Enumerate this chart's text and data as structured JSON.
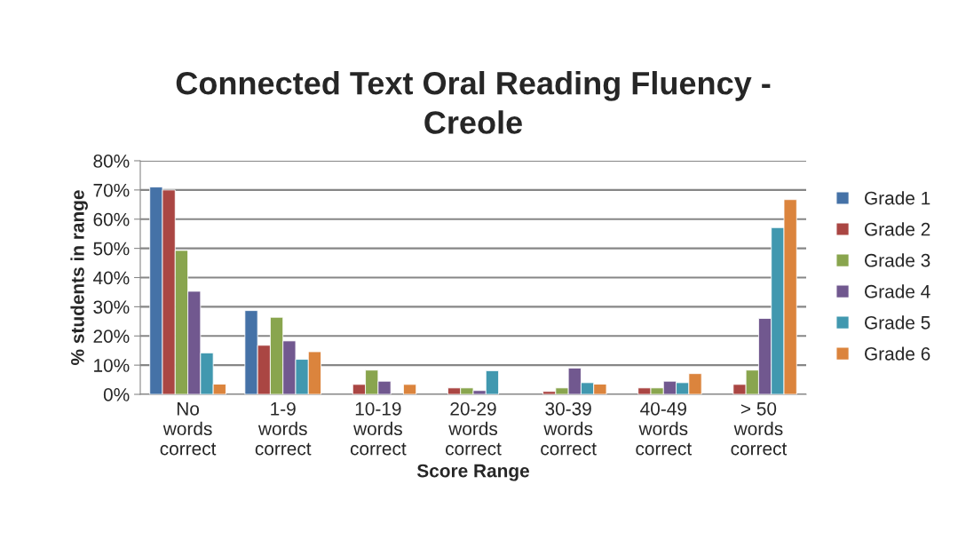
{
  "chart_data": {
    "type": "bar",
    "title": "Connected Text Oral Reading Fluency -\nCreole",
    "xlabel": "Score Range",
    "ylabel": "% students in range",
    "categories": [
      "No\nwords\ncorrect",
      "1-9\nwords\ncorrect",
      "10-19\nwords\ncorrect",
      "20-29\nwords\ncorrect",
      "30-39\nwords\ncorrect",
      "40-49\nwords\ncorrect",
      "> 50\nwords\ncorrect"
    ],
    "series": [
      {
        "name": "Grade 1",
        "color": "#4572a7",
        "values": [
          71,
          28.7,
          null,
          null,
          null,
          null,
          null
        ]
      },
      {
        "name": "Grade 2",
        "color": "#aa4643",
        "values": [
          70,
          16.8,
          3.4,
          2.2,
          1.0,
          2.2,
          3.4
        ]
      },
      {
        "name": "Grade 3",
        "color": "#89a54e",
        "values": [
          49.3,
          26.4,
          8.3,
          2.2,
          2.2,
          2.2,
          8.3
        ]
      },
      {
        "name": "Grade 4",
        "color": "#71588f",
        "values": [
          35.3,
          18.3,
          4.5,
          1.3,
          9.0,
          4.5,
          26.0
        ]
      },
      {
        "name": "Grade 5",
        "color": "#4198af",
        "values": [
          14.2,
          12.0,
          null,
          8.1,
          4.0,
          4.0,
          57.1
        ]
      },
      {
        "name": "Grade 6",
        "color": "#db843d",
        "values": [
          3.5,
          14.6,
          3.4,
          null,
          3.5,
          7.1,
          66.7
        ]
      }
    ],
    "ylim": [
      0,
      80
    ],
    "yticks": [
      {
        "value": 0,
        "label": "0%"
      },
      {
        "value": 10,
        "label": "10%"
      },
      {
        "value": 20,
        "label": "20%"
      },
      {
        "value": 30,
        "label": "30%"
      },
      {
        "value": 40,
        "label": "40%"
      },
      {
        "value": 50,
        "label": "50%"
      },
      {
        "value": 60,
        "label": "60%"
      },
      {
        "value": 70,
        "label": "70%"
      },
      {
        "value": 80,
        "label": "80%"
      }
    ],
    "grid": "y",
    "legend": "right"
  }
}
